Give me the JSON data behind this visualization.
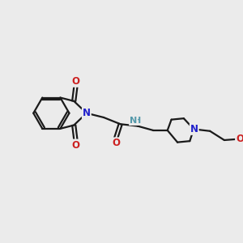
{
  "bg_color": "#ebebeb",
  "bond_color": "#1a1a1a",
  "N_color": "#2020cc",
  "O_color": "#cc2020",
  "NH_color": "#5599aa",
  "line_width": 1.6,
  "font_size_atom": 8.5,
  "fig_width": 3.0,
  "fig_height": 3.0,
  "xlim": [
    0,
    10
  ],
  "ylim": [
    0,
    10
  ]
}
